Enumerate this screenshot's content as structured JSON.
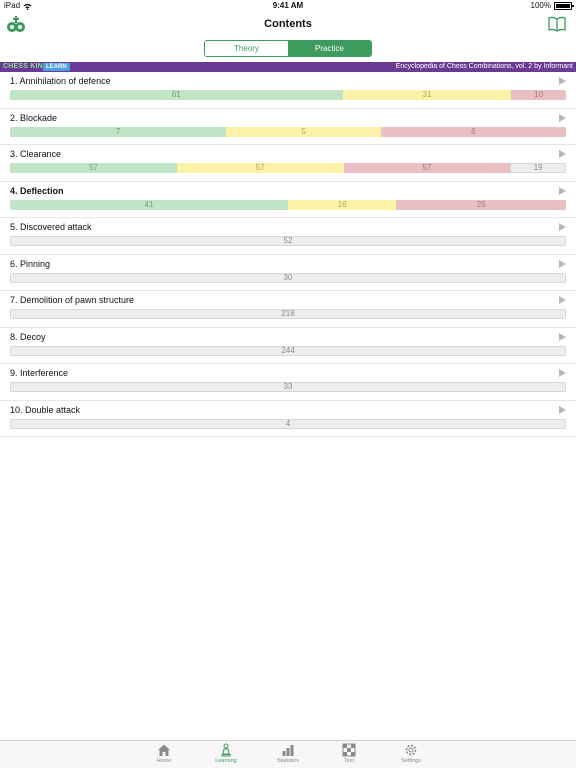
{
  "status_bar": {
    "device": "iPad",
    "time": "9:41 AM",
    "battery_text": "100%"
  },
  "nav": {
    "title": "Contents",
    "left_icon": "chess-king-logo-icon",
    "right_icon": "book-icon"
  },
  "segmented": {
    "items": [
      "Theory",
      "Practice"
    ],
    "selected": "Practice"
  },
  "banner": {
    "brand": "CHESS KING",
    "badge": "LEARN",
    "book": "Encyclopedia of Chess Combinations, vol. 2 by Informant"
  },
  "colors": {
    "accent": "#3c9b5d",
    "banner": "#6a3a95",
    "green": "#c1e3c6",
    "yellow": "#fbf2a7",
    "red": "#e8c0c3",
    "gray": "#ededed"
  },
  "items": [
    {
      "title": "1. Annihilation of defence",
      "bold": false,
      "progress": [
        {
          "kind": "green",
          "value": 61
        },
        {
          "kind": "yellow",
          "value": 31
        },
        {
          "kind": "red",
          "value": 10
        }
      ]
    },
    {
      "title": "2. Blockade",
      "bold": false,
      "progress": [
        {
          "kind": "green",
          "value": 7
        },
        {
          "kind": "yellow",
          "value": 5
        },
        {
          "kind": "red",
          "value": 6
        }
      ]
    },
    {
      "title": "3. Clearance",
      "bold": false,
      "progress": [
        {
          "kind": "green",
          "value": 57
        },
        {
          "kind": "yellow",
          "value": 57
        },
        {
          "kind": "red",
          "value": 57
        },
        {
          "kind": "gray",
          "value": 19
        }
      ]
    },
    {
      "title": "4. Deflection",
      "bold": true,
      "progress": [
        {
          "kind": "green",
          "value": 41
        },
        {
          "kind": "yellow",
          "value": 16
        },
        {
          "kind": "red",
          "value": 25
        }
      ]
    },
    {
      "title": "5. Discovered attack",
      "bold": false,
      "progress": [
        {
          "kind": "gray",
          "value": 52
        }
      ]
    },
    {
      "title": "6. Pinning",
      "bold": false,
      "progress": [
        {
          "kind": "gray",
          "value": 30
        }
      ]
    },
    {
      "title": "7. Demolition of pawn structure",
      "bold": false,
      "progress": [
        {
          "kind": "gray",
          "value": 218
        }
      ]
    },
    {
      "title": "8. Decoy",
      "bold": false,
      "progress": [
        {
          "kind": "gray",
          "value": 244
        }
      ]
    },
    {
      "title": "9. Interference",
      "bold": false,
      "progress": [
        {
          "kind": "gray",
          "value": 33
        }
      ]
    },
    {
      "title": "10. Double attack",
      "bold": false,
      "progress": [
        {
          "kind": "gray",
          "value": 4
        }
      ]
    }
  ],
  "tabs": [
    {
      "label": "Home",
      "icon": "home-icon",
      "active": false
    },
    {
      "label": "Learning",
      "icon": "pawn-icon",
      "active": true
    },
    {
      "label": "Statistics",
      "icon": "statistics-icon",
      "active": false
    },
    {
      "label": "Test",
      "icon": "chessboard-icon",
      "active": false
    },
    {
      "label": "Settings",
      "icon": "gear-icon",
      "active": false
    }
  ]
}
